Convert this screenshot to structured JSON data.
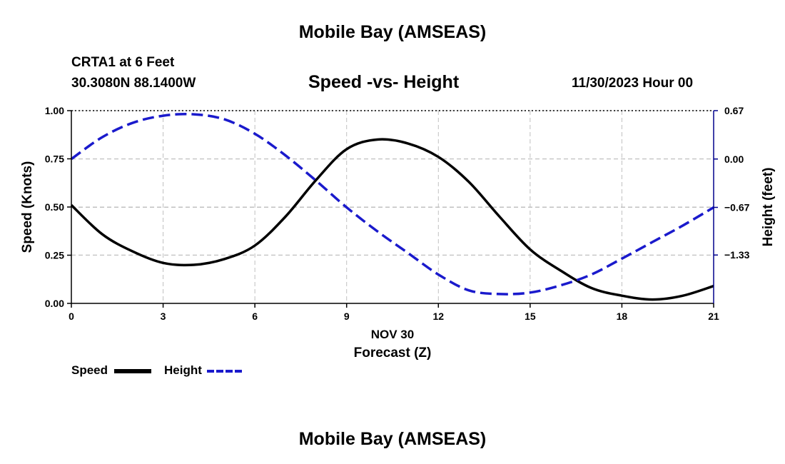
{
  "page": {
    "top_title": "Mobile Bay (AMSEAS)",
    "bottom_title": "Mobile Bay (AMSEAS)",
    "station": "CRTA1 at 6 Feet",
    "coords": "30.3080N  88.1400W",
    "datetime": "11/30/2023 Hour 00"
  },
  "colors": {
    "speed": "#000000",
    "height": "#1a1acc",
    "grid": "#c0c0c0"
  },
  "chart_data": {
    "type": "line",
    "title": "Speed -vs- Height",
    "xlabel_date": "NOV 30",
    "xlabel": "Forecast (Z)",
    "ylabel_left": "Speed (Knots)",
    "ylabel_right": "Height (feet)",
    "xlim": [
      0,
      21
    ],
    "ylim_left": [
      0,
      1.0
    ],
    "ylim_right": [
      -2.0,
      0.67
    ],
    "x_ticks": [
      0,
      3,
      6,
      9,
      12,
      15,
      18,
      21
    ],
    "x_tick_labels": [
      "0",
      "3",
      "6",
      "9",
      "12",
      "15",
      "18",
      "21"
    ],
    "y_left_ticks": [
      0,
      0.25,
      0.5,
      0.75,
      1.0
    ],
    "y_left_tick_labels": [
      "0.00",
      "0.25",
      "0.50",
      "0.75",
      "1.00"
    ],
    "y_right_ticks": [
      0.67,
      0.0,
      -0.67,
      -1.33
    ],
    "y_right_tick_labels": [
      "0.67",
      "0.00",
      "−0.67",
      "−1.33"
    ],
    "legend_position": "bottom-left",
    "series": [
      {
        "name": "Speed",
        "axis": "left",
        "style": "solid",
        "x": [
          0,
          1,
          2,
          3,
          4,
          5,
          6,
          7,
          8,
          9,
          10,
          11,
          12,
          13,
          14,
          15,
          16,
          17,
          18,
          19,
          20,
          21
        ],
        "values": [
          0.51,
          0.36,
          0.27,
          0.21,
          0.2,
          0.23,
          0.3,
          0.45,
          0.64,
          0.8,
          0.85,
          0.83,
          0.76,
          0.63,
          0.45,
          0.28,
          0.17,
          0.08,
          0.04,
          0.02,
          0.04,
          0.09
        ]
      },
      {
        "name": "Height",
        "axis": "right",
        "style": "dashed",
        "x": [
          0,
          1,
          2,
          3,
          4,
          5,
          6,
          7,
          8,
          9,
          10,
          11,
          12,
          13,
          14,
          15,
          16,
          17,
          18,
          19,
          20,
          21
        ],
        "values": [
          0.0,
          0.3,
          0.5,
          0.6,
          0.62,
          0.55,
          0.35,
          0.05,
          -0.3,
          -0.67,
          -1.0,
          -1.3,
          -1.6,
          -1.82,
          -1.87,
          -1.85,
          -1.75,
          -1.6,
          -1.38,
          -1.15,
          -0.92,
          -0.67
        ]
      }
    ]
  }
}
